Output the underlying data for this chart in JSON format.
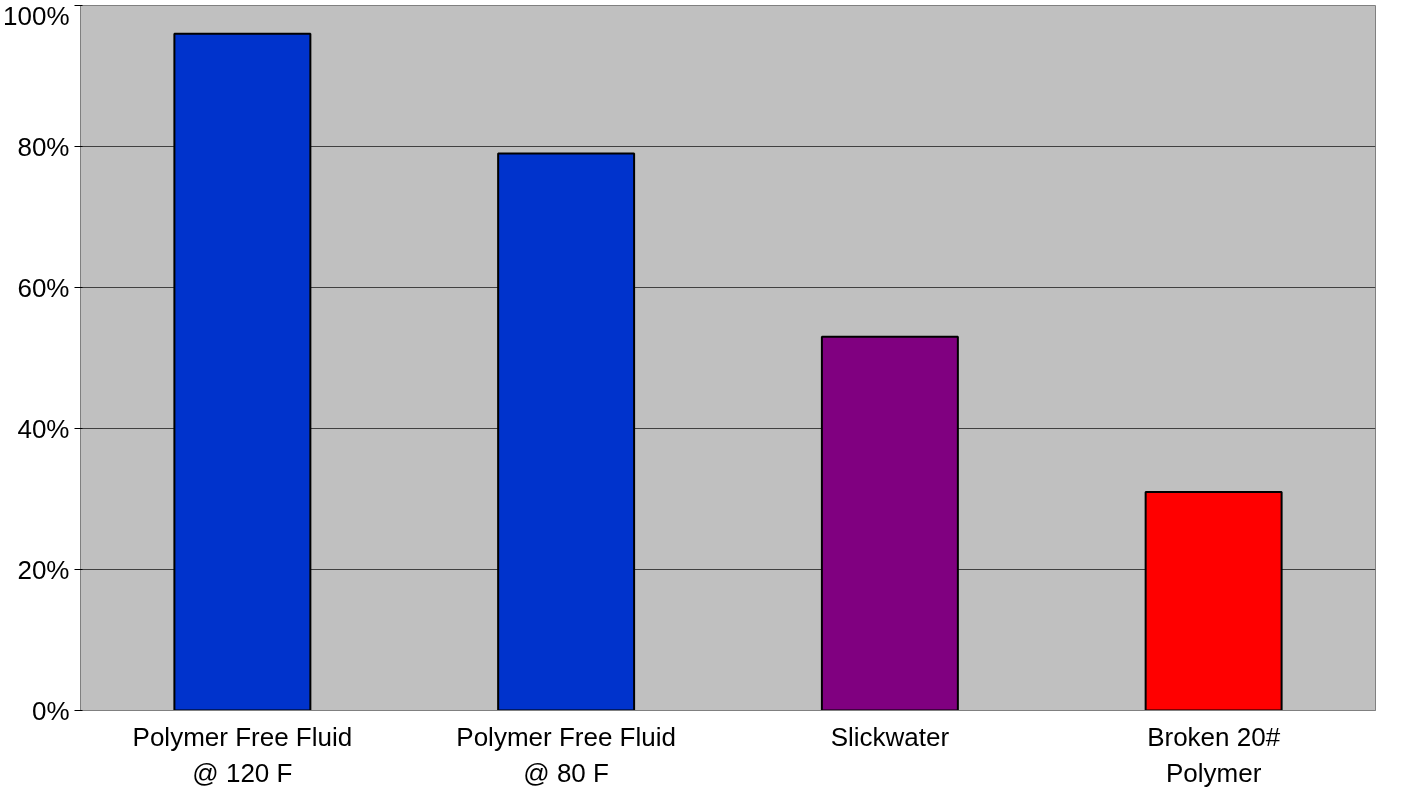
{
  "chart_data": {
    "type": "bar",
    "categories": [
      "Polymer Free Fluid\n@ 120 F",
      "Polymer Free Fluid\n@ 80 F",
      "Slickwater",
      "Broken 20#\nPolymer"
    ],
    "values": [
      96,
      79,
      53,
      31
    ],
    "colors": [
      "#0033cc",
      "#0033cc",
      "#800080",
      "#ff0000"
    ],
    "ylim": [
      0,
      100
    ],
    "yticks": [
      {
        "value": 0,
        "label": "0%"
      },
      {
        "value": 20,
        "label": "20%"
      },
      {
        "value": 40,
        "label": "40%"
      },
      {
        "value": 60,
        "label": "60%"
      },
      {
        "value": 80,
        "label": "80%"
      },
      {
        "value": 100,
        "label": "100%"
      }
    ],
    "grid": "y"
  }
}
